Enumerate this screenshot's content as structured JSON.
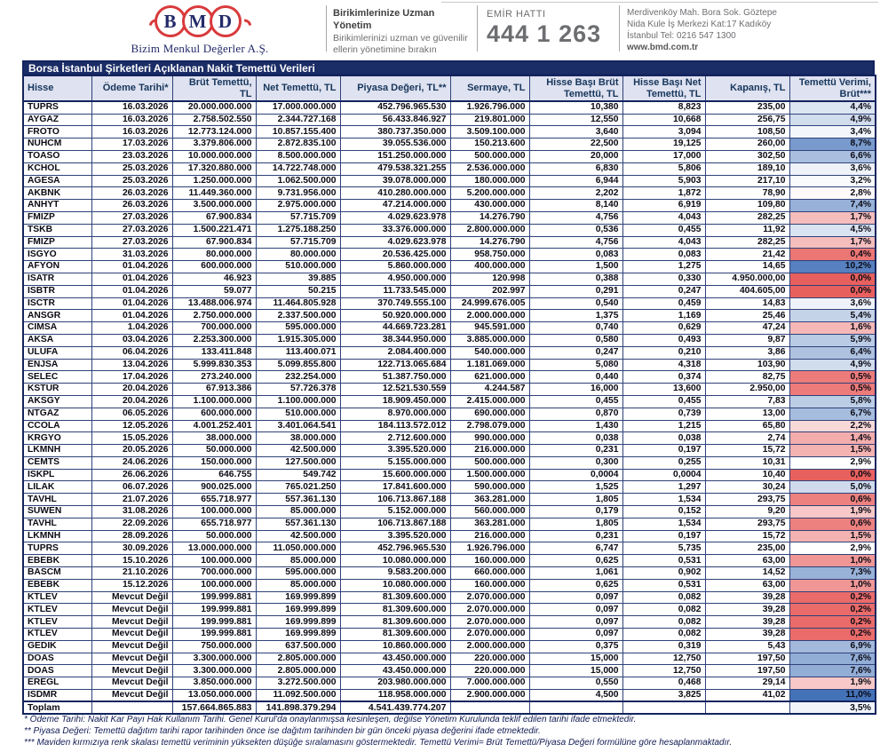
{
  "header": {
    "logo_letters": [
      "B",
      "M",
      "D"
    ],
    "logo_subtitle": "Bizim Menkul Değerler A.Ş.",
    "slogan_title": "Birikimlerinize Uzman Yönetim",
    "slogan_line1": "Birikimlerinizi uzman ve güvenilir",
    "slogan_line2": "ellerin yönetimine bırakın",
    "order_line_label": "EMİR HATTI",
    "order_line_number": "444 1 263",
    "address_line1": "Merdivenköy Mah. Bora Sok. Göztepe",
    "address_line2": "Nida Kule İş Merkezi Kat:17 Kadıköy",
    "address_line3": "İstanbul    Tel: 0216 547 1300",
    "website": "www.bmd.com.tr"
  },
  "colors": {
    "accent_red": "#d93a3c",
    "navy": "#1b2d66",
    "scale_max_blue": "#4472b8",
    "scale_min_red": "#e8605e",
    "scale_mid_value": 2.9,
    "scale_max_value": 11.0
  },
  "table": {
    "title": "Borsa İstanbul Şirketleri Açıklanan Nakit Temettü Verileri",
    "columns": [
      "Hisse",
      "Ödeme Tarihi*",
      "Brüt Temettü, TL",
      "Net Temettü, TL",
      "Piyasa Değeri, TL**",
      "Sermaye, TL",
      "Hisse Başı Brüt Temettü, TL",
      "Hisse Başı Net Temettü, TL",
      "Kapanış, TL",
      "Temettü Verimi, Brüt***"
    ],
    "rows": [
      [
        "TUPRS",
        "16.03.2026",
        "20.000.000.000",
        "17.000.000.000",
        "452.796.965.530",
        "1.926.796.000",
        "10,380",
        "8,823",
        "235,00",
        "4,4%"
      ],
      [
        "AYGAZ",
        "16.03.2026",
        "2.758.502.550",
        "2.344.727.168",
        "56.433.846.927",
        "219.801.000",
        "12,550",
        "10,668",
        "256,75",
        "4,9%"
      ],
      [
        "FROTO",
        "16.03.2026",
        "12.773.124.000",
        "10.857.155.400",
        "380.737.350.000",
        "3.509.100.000",
        "3,640",
        "3,094",
        "108,50",
        "3,4%"
      ],
      [
        "NUHCM",
        "17.03.2026",
        "3.379.806.000",
        "2.872.835.100",
        "39.055.536.000",
        "150.213.600",
        "22,500",
        "19,125",
        "260,00",
        "8,7%"
      ],
      [
        "TOASO",
        "23.03.2026",
        "10.000.000.000",
        "8.500.000.000",
        "151.250.000.000",
        "500.000.000",
        "20,000",
        "17,000",
        "302,50",
        "6,6%"
      ],
      [
        "KCHOL",
        "25.03.2026",
        "17.320.880.000",
        "14.722.748.000",
        "479.538.321.255",
        "2.536.000.000",
        "6,830",
        "5,806",
        "189,10",
        "3,6%"
      ],
      [
        "AGESA",
        "25.03.2026",
        "1.250.000.000",
        "1.062.500.000",
        "39.078.000.000",
        "180.000.000",
        "6,944",
        "5,903",
        "217,10",
        "3,2%"
      ],
      [
        "AKBNK",
        "26.03.2026",
        "11.449.360.000",
        "9.731.956.000",
        "410.280.000.000",
        "5.200.000.000",
        "2,202",
        "1,872",
        "78,90",
        "2,8%"
      ],
      [
        "ANHYT",
        "26.03.2026",
        "3.500.000.000",
        "2.975.000.000",
        "47.214.000.000",
        "430.000.000",
        "8,140",
        "6,919",
        "109,80",
        "7,4%"
      ],
      [
        "FMIZP",
        "27.03.2026",
        "67.900.834",
        "57.715.709",
        "4.029.623.978",
        "14.276.790",
        "4,756",
        "4,043",
        "282,25",
        "1,7%"
      ],
      [
        "TSKB",
        "27.03.2026",
        "1.500.221.471",
        "1.275.188.250",
        "33.376.000.000",
        "2.800.000.000",
        "0,536",
        "0,455",
        "11,92",
        "4,5%"
      ],
      [
        "FMIZP",
        "27.03.2026",
        "67.900.834",
        "57.715.709",
        "4.029.623.978",
        "14.276.790",
        "4,756",
        "4,043",
        "282,25",
        "1,7%"
      ],
      [
        "ISGYO",
        "31.03.2026",
        "80.000.000",
        "80.000.000",
        "20.536.425.000",
        "958.750.000",
        "0,083",
        "0,083",
        "21,42",
        "0,4%"
      ],
      [
        "AFYON",
        "01.04.2026",
        "600.000.000",
        "510.000.000",
        "5.860.000.000",
        "400.000.000",
        "1,500",
        "1,275",
        "14,65",
        "10,2%"
      ],
      [
        "ISATR",
        "01.04.2026",
        "46.923",
        "39.885",
        "4.950.000.000",
        "120.998",
        "0,388",
        "0,330",
        "4.950.000,00",
        "0,0%"
      ],
      [
        "ISBTR",
        "01.04.2026",
        "59.077",
        "50.215",
        "11.733.545.000",
        "202.997",
        "0,291",
        "0,247",
        "404.605,00",
        "0,0%"
      ],
      [
        "ISCTR",
        "01.04.2026",
        "13.488.006.974",
        "11.464.805.928",
        "370.749.555.100",
        "24.999.676.005",
        "0,540",
        "0,459",
        "14,83",
        "3,6%"
      ],
      [
        "ANSGR",
        "01.04.2026",
        "2.750.000.000",
        "2.337.500.000",
        "50.920.000.000",
        "2.000.000.000",
        "1,375",
        "1,169",
        "25,46",
        "5,4%"
      ],
      [
        "CIMSA",
        "1.04.2026",
        "700.000.000",
        "595.000.000",
        "44.669.723.281",
        "945.591.000",
        "0,740",
        "0,629",
        "47,24",
        "1,6%"
      ],
      [
        "AKSA",
        "03.04.2026",
        "2.253.300.000",
        "1.915.305.000",
        "38.344.950.000",
        "3.885.000.000",
        "0,580",
        "0,493",
        "9,87",
        "5,9%"
      ],
      [
        "ULUFA",
        "06.04.2026",
        "133.411.848",
        "113.400.071",
        "2.084.400.000",
        "540.000.000",
        "0,247",
        "0,210",
        "3,86",
        "6,4%"
      ],
      [
        "ENJSA",
        "13.04.2026",
        "5.999.830.353",
        "5.099.855.800",
        "122.713.065.684",
        "1.181.069.000",
        "5,080",
        "4,318",
        "103,90",
        "4,9%"
      ],
      [
        "SELEC",
        "17.04.2026",
        "273.240.000",
        "232.254.000",
        "51.387.750.000",
        "621.000.000",
        "0,440",
        "0,374",
        "82,75",
        "0,5%"
      ],
      [
        "KSTUR",
        "20.04.2026",
        "67.913.386",
        "57.726.378",
        "12.521.530.559",
        "4.244.587",
        "16,000",
        "13,600",
        "2.950,00",
        "0,5%"
      ],
      [
        "AKSGY",
        "20.04.2026",
        "1.100.000.000",
        "1.100.000.000",
        "18.909.450.000",
        "2.415.000.000",
        "0,455",
        "0,455",
        "7,83",
        "5,8%"
      ],
      [
        "NTGAZ",
        "06.05.2026",
        "600.000.000",
        "510.000.000",
        "8.970.000.000",
        "690.000.000",
        "0,870",
        "0,739",
        "13,00",
        "6,7%"
      ],
      [
        "CCOLA",
        "12.05.2026",
        "4.001.252.401",
        "3.401.064.541",
        "184.113.572.012",
        "2.798.079.000",
        "1,430",
        "1,215",
        "65,80",
        "2,2%"
      ],
      [
        "KRGYO",
        "15.05.2026",
        "38.000.000",
        "38.000.000",
        "2.712.600.000",
        "990.000.000",
        "0,038",
        "0,038",
        "2,74",
        "1,4%"
      ],
      [
        "LKMNH",
        "20.05.2026",
        "50.000.000",
        "42.500.000",
        "3.395.520.000",
        "216.000.000",
        "0,231",
        "0,197",
        "15,72",
        "1,5%"
      ],
      [
        "CEMTS",
        "24.06.2026",
        "150.000.000",
        "127.500.000",
        "5.155.000.000",
        "500.000.000",
        "0,300",
        "0,255",
        "10,31",
        "2,9%"
      ],
      [
        "ISKPL",
        "26.06.2026",
        "646.755",
        "549.742",
        "15.600.000.000",
        "1.500.000.000",
        "0,0004",
        "0,0004",
        "10,40",
        "0,0%"
      ],
      [
        "LILAK",
        "06.07.2026",
        "900.025.000",
        "765.021.250",
        "17.841.600.000",
        "590.000.000",
        "1,525",
        "1,297",
        "30,24",
        "5,0%"
      ],
      [
        "TAVHL",
        "21.07.2026",
        "655.718.977",
        "557.361.130",
        "106.713.867.188",
        "363.281.000",
        "1,805",
        "1,534",
        "293,75",
        "0,6%"
      ],
      [
        "SUWEN",
        "31.08.2026",
        "100.000.000",
        "85.000.000",
        "5.152.000.000",
        "560.000.000",
        "0,179",
        "0,152",
        "9,20",
        "1,9%"
      ],
      [
        "TAVHL",
        "22.09.2026",
        "655.718.977",
        "557.361.130",
        "106.713.867.188",
        "363.281.000",
        "1,805",
        "1,534",
        "293,75",
        "0,6%"
      ],
      [
        "LKMNH",
        "28.09.2026",
        "50.000.000",
        "42.500.000",
        "3.395.520.000",
        "216.000.000",
        "0,231",
        "0,197",
        "15,72",
        "1,5%"
      ],
      [
        "TUPRS",
        "30.09.2026",
        "13.000.000.000",
        "11.050.000.000",
        "452.796.965.530",
        "1.926.796.000",
        "6,747",
        "5,735",
        "235,00",
        "2,9%"
      ],
      [
        "EBEBK",
        "15.10.2026",
        "100.000.000",
        "85.000.000",
        "10.080.000.000",
        "160.000.000",
        "0,625",
        "0,531",
        "63,00",
        "1,0%"
      ],
      [
        "BASCM",
        "21.10.2026",
        "700.000.000",
        "595.000.000",
        "9.583.200.000",
        "660.000.000",
        "1,061",
        "0,902",
        "14,52",
        "7,3%"
      ],
      [
        "EBEBK",
        "15.12.2026",
        "100.000.000",
        "85.000.000",
        "10.080.000.000",
        "160.000.000",
        "0,625",
        "0,531",
        "63,00",
        "1,0%"
      ],
      [
        "KTLEV",
        "Mevcut Değil",
        "199.999.881",
        "169.999.899",
        "81.309.600.000",
        "2.070.000.000",
        "0,097",
        "0,082",
        "39,28",
        "0,2%"
      ],
      [
        "KTLEV",
        "Mevcut Değil",
        "199.999.881",
        "169.999.899",
        "81.309.600.000",
        "2.070.000.000",
        "0,097",
        "0,082",
        "39,28",
        "0,2%"
      ],
      [
        "KTLEV",
        "Mevcut Değil",
        "199.999.881",
        "169.999.899",
        "81.309.600.000",
        "2.070.000.000",
        "0,097",
        "0,082",
        "39,28",
        "0,2%"
      ],
      [
        "KTLEV",
        "Mevcut Değil",
        "199.999.881",
        "169.999.899",
        "81.309.600.000",
        "2.070.000.000",
        "0,097",
        "0,082",
        "39,28",
        "0,2%"
      ],
      [
        "GEDIK",
        "Mevcut Değil",
        "750.000.000",
        "637.500.000",
        "10.860.000.000",
        "2.000.000.000",
        "0,375",
        "0,319",
        "5,43",
        "6,9%"
      ],
      [
        "DOAS",
        "Mevcut Değil",
        "3.300.000.000",
        "2.805.000.000",
        "43.450.000.000",
        "220.000.000",
        "15,000",
        "12,750",
        "197,50",
        "7,6%"
      ],
      [
        "DOAS",
        "Mevcut Değil",
        "3.300.000.000",
        "2.805.000.000",
        "43.450.000.000",
        "220.000.000",
        "15,000",
        "12,750",
        "197,50",
        "7,6%"
      ],
      [
        "EREGL",
        "Mevcut Değil",
        "3.850.000.000",
        "3.272.500.000",
        "203.980.000.000",
        "7.000.000.000",
        "0,550",
        "0,468",
        "29,14",
        "1,9%"
      ],
      [
        "ISDMR",
        "Mevcut Değil",
        "13.050.000.000",
        "11.092.500.000",
        "118.958.000.000",
        "2.900.000.000",
        "4,500",
        "3,825",
        "41,02",
        "11,0%"
      ]
    ],
    "total_row": [
      "Toplam",
      "",
      "157.664.865.883",
      "141.898.379.294",
      "4.541.439.774.207",
      "",
      "",
      "",
      "",
      "3,5%"
    ]
  },
  "footnotes": [
    "* Ödeme Tarihi: Nakit Kar Payı Hak Kullanım Tarihi. Genel Kurul'da onaylanmışsa kesinleşen, değilse Yönetim Kurulunda teklif edilen tarihi ifade etmektedir.",
    "** Piyasa Değeri: Temettü dağıtım tarihi rapor tarihinden önce ise dağıtım tarihinden bir gün önceki piyasa değerini ifade etmektedir.",
    "*** Maviden kırmızıya renk skalası temettü veriminin yüksekten düşüğe sıralamasını göstermektedir. Temettü Verimi= Brüt Temettü/Piyasa Değeri formülüne göre hesaplanmaktadır."
  ]
}
